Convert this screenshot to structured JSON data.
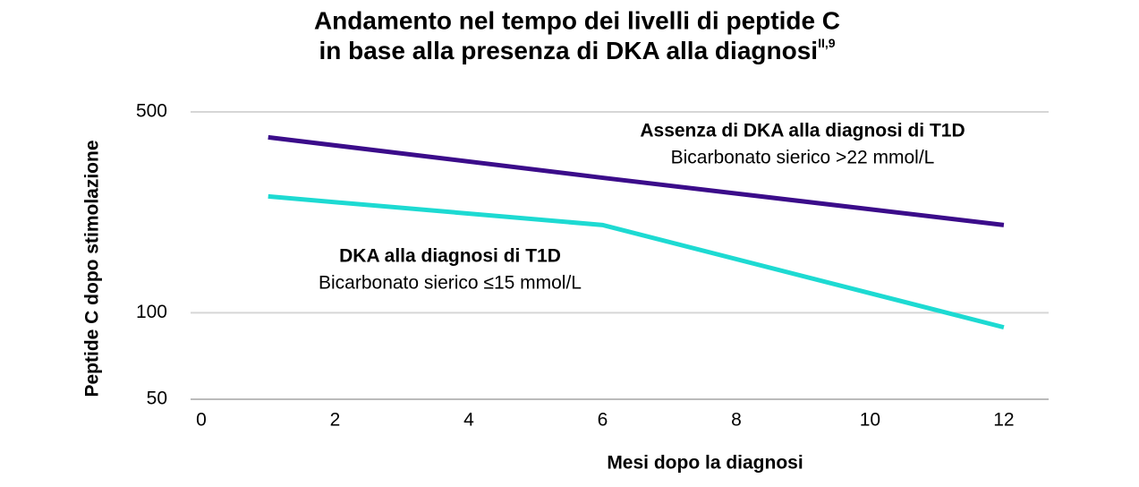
{
  "chart_data": {
    "type": "line",
    "title_lines": [
      "Andamento nel tempo dei livelli di peptide C",
      "in base alla presenza di DKA alla diagnosi"
    ],
    "title_superscript": "II,9",
    "x_label": "Mesi dopo la diagnosi",
    "y_label": "Peptide C dopo stimolazione",
    "x": [
      1,
      6,
      12
    ],
    "series": [
      {
        "name": "Assenza di DKA alla diagnosi di T1D",
        "description": "Bicarbonato sierico >22 mmol/L",
        "color": "#3b0c8a",
        "values": [
          408,
          295,
          202
        ]
      },
      {
        "name": "DKA alla diagnosi di T1D",
        "description": "Bicarbonato sierico ≤15 mmol/L",
        "color": "#1ddad2",
        "values": [
          254,
          202,
          89
        ]
      }
    ],
    "xlim": [
      -0.16,
      12.67
    ],
    "xticks": [
      0,
      2,
      4,
      6,
      8,
      10,
      12
    ],
    "ylim": [
      50,
      500
    ],
    "yticks": [
      50,
      100,
      500
    ],
    "log_y": true,
    "grid": true
  }
}
